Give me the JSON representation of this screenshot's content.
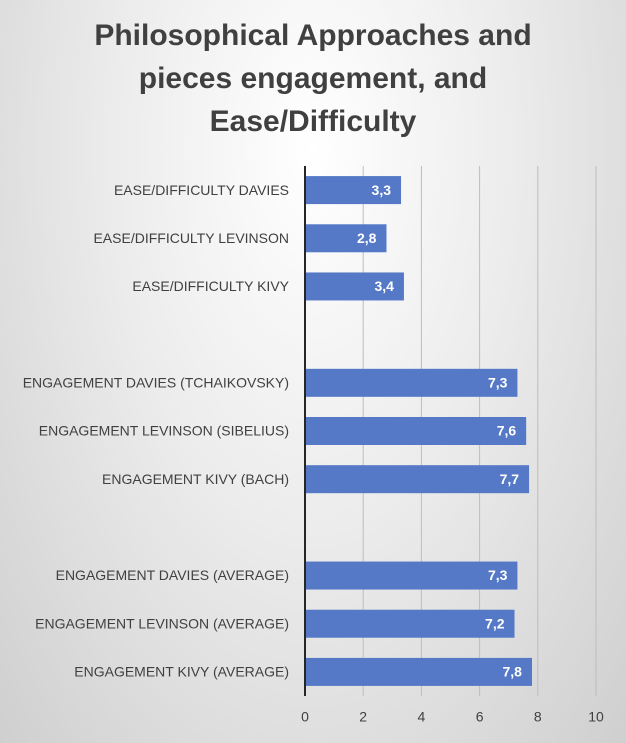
{
  "chart_data": {
    "type": "bar",
    "orientation": "horizontal",
    "title": "Philosophical Approaches and pieces engagement, and Ease/Difficulty",
    "categories": [
      "EASE/DIFFICULTY DAVIES",
      "EASE/DIFFICULTY LEVINSON",
      "EASE/DIFFICULTY KIVY",
      null,
      "ENGAGEMENT DAVIES (TCHAIKOVSKY)",
      "ENGAGEMENT LEVINSON (SIBELIUS)",
      "ENGAGEMENT KIVY (BACH)",
      null,
      "ENGAGEMENT DAVIES (AVERAGE)",
      "ENGAGEMENT LEVINSON (AVERAGE)",
      "ENGAGEMENT KIVY (AVERAGE)"
    ],
    "values": [
      3.3,
      2.8,
      3.4,
      null,
      7.3,
      7.6,
      7.7,
      null,
      7.3,
      7.2,
      7.8
    ],
    "value_labels": [
      "3,3",
      "2,8",
      "3,4",
      null,
      "7,3",
      "7,6",
      "7,7",
      null,
      "7,3",
      "7,2",
      "7,8"
    ],
    "color": "#5579c6",
    "xlim": [
      0,
      10
    ],
    "xticks": [
      0,
      2,
      4,
      6,
      8,
      10
    ],
    "grid": true
  }
}
